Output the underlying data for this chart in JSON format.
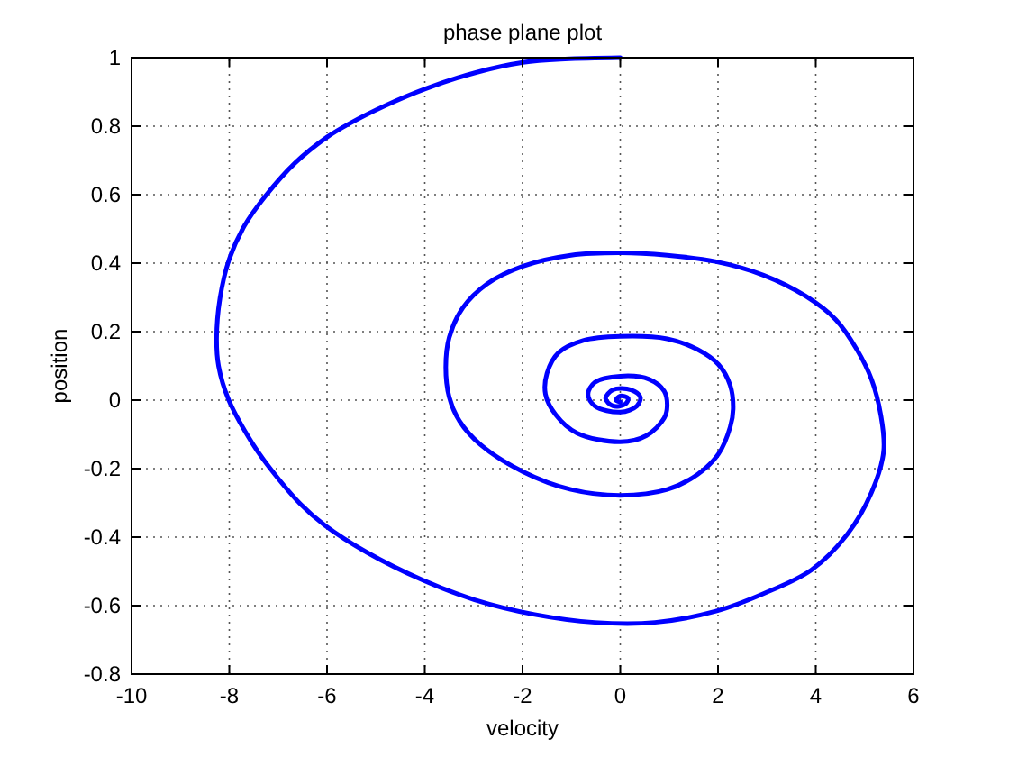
{
  "chart_data": {
    "type": "line",
    "title": "phase plane plot",
    "xlabel": "velocity",
    "ylabel": "position",
    "xlim": [
      -10,
      6
    ],
    "xticks": [
      -10,
      -8,
      -6,
      -4,
      -2,
      0,
      2,
      4,
      6
    ],
    "ylim": [
      -0.8,
      1
    ],
    "yticks": [
      -0.8,
      -0.6,
      -0.4,
      -0.2,
      0,
      0.2,
      0.4,
      0.6,
      0.8,
      1
    ],
    "grid": true,
    "line_style": "solid",
    "series": [
      {
        "color": "#0000ff",
        "x": [
          0,
          -1.13,
          -1.99,
          -2.97,
          -3.99,
          -4.81,
          -5.55,
          -6,
          -6.65,
          -7.26,
          -7.69,
          -8,
          -8.19,
          -8.26,
          -8.22,
          -8.01,
          -7.52,
          -7.16,
          -6.54,
          -6.05,
          -5.19,
          -4.05,
          -2.98,
          -1.75,
          -0.52,
          0.71,
          1.94,
          2.93,
          3.91,
          4.65,
          5.14,
          5.39,
          5.33,
          5.14,
          4.84,
          4.41,
          3.79,
          2.93,
          1.94,
          0.96,
          0,
          -1.01,
          -1.99,
          -2.73,
          -3.22,
          -3.5,
          -3.57,
          -3.5,
          -3.29,
          -2.86,
          -1.99,
          -1.01,
          0,
          0.96,
          1.58,
          2.01,
          2.25,
          2.31,
          2.25,
          2.01,
          1.58,
          0.96,
          0,
          -0.76,
          -1.26,
          -1.5,
          -1.53,
          -1.32,
          -0.89,
          0,
          0.53,
          0.9,
          0.96,
          0.9,
          0.59,
          0,
          -0.52,
          -0.66,
          -0.52,
          0,
          0.34,
          0.41,
          0.22,
          -0.15,
          -0.3,
          -0.15,
          0.1,
          0.16,
          0,
          -0.09,
          0
        ],
        "values": [
          1,
          0.996,
          0.986,
          0.956,
          0.909,
          0.86,
          0.807,
          0.768,
          0.693,
          0.596,
          0.509,
          0.412,
          0.298,
          0.18,
          0.1,
          0,
          -0.128,
          -0.2,
          -0.304,
          -0.365,
          -0.444,
          -0.525,
          -0.583,
          -0.626,
          -0.649,
          -0.649,
          -0.617,
          -0.565,
          -0.496,
          -0.391,
          -0.27,
          -0.148,
          -0.043,
          0.061,
          0.148,
          0.235,
          0.304,
          0.365,
          0.405,
          0.423,
          0.43,
          0.423,
          0.391,
          0.339,
          0.27,
          0.183,
          0.096,
          0.009,
          -0.061,
          -0.13,
          -0.209,
          -0.261,
          -0.278,
          -0.261,
          -0.217,
          -0.157,
          -0.078,
          -0.026,
          0.043,
          0.104,
          0.148,
          0.179,
          0.186,
          0.174,
          0.139,
          0.078,
          0.017,
          -0.043,
          -0.096,
          -0.122,
          -0.104,
          -0.052,
          -0.017,
          0.026,
          0.061,
          0.07,
          0.052,
          0.017,
          -0.017,
          -0.035,
          -0.017,
          0.009,
          0.03,
          0.03,
          0.005,
          -0.017,
          -0.012,
          0.005,
          0.012,
          0,
          -0.005
        ]
      }
    ]
  }
}
